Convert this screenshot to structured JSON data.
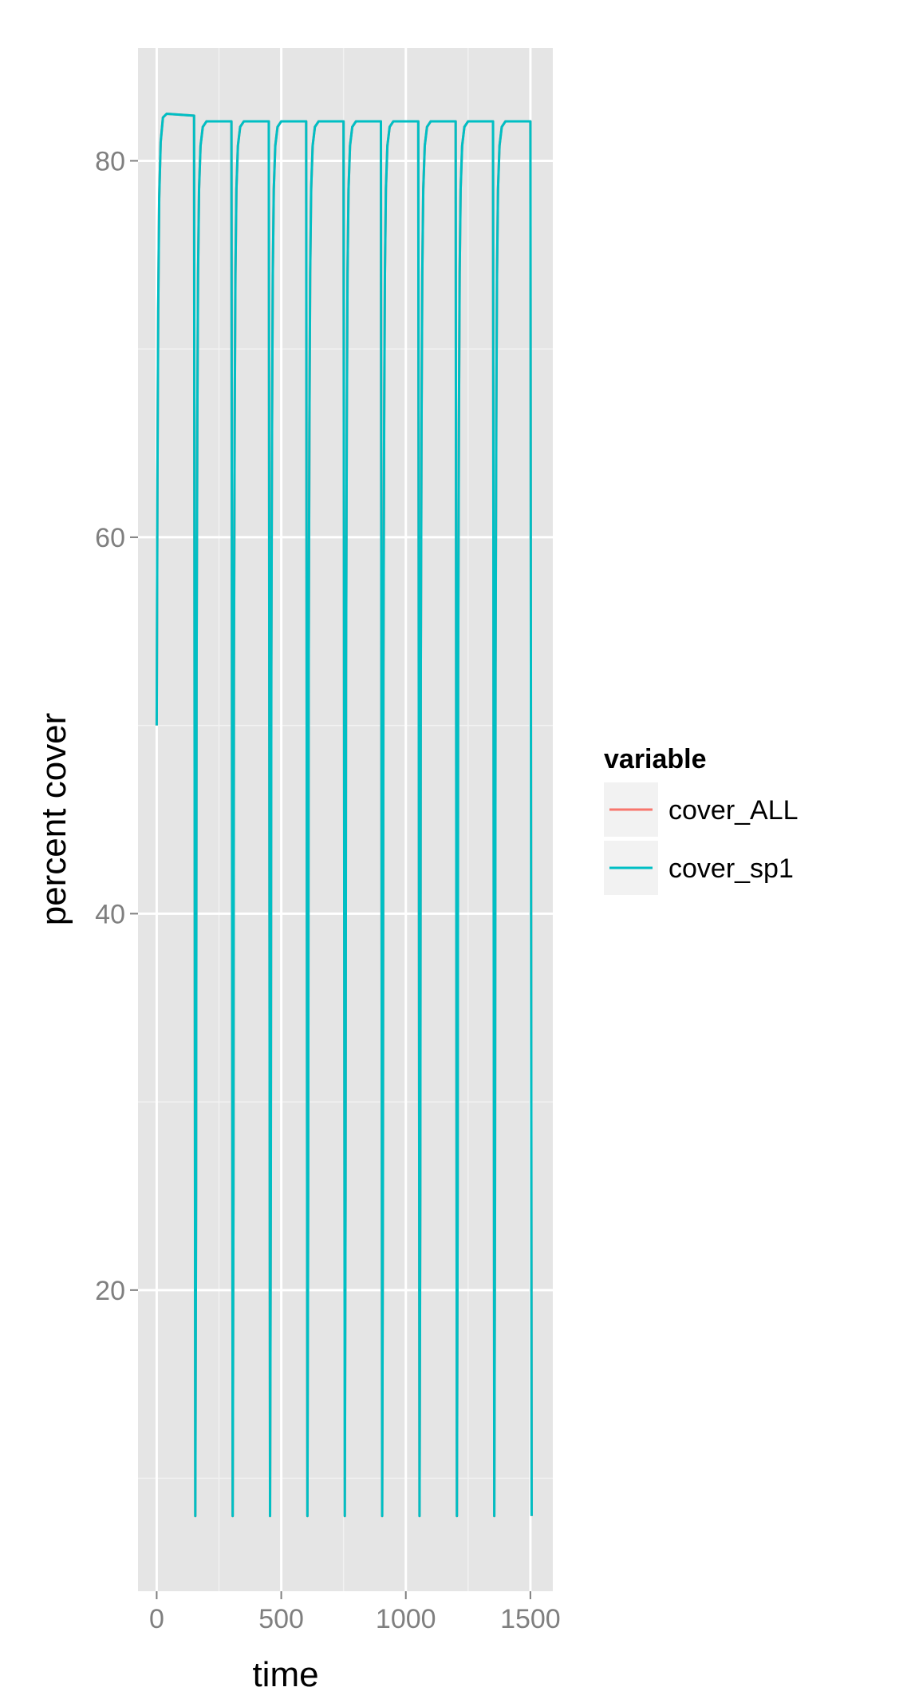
{
  "chart_data": {
    "type": "line",
    "title": "",
    "xlabel": "time",
    "ylabel": "percent cover",
    "xlim": [
      -75,
      1590
    ],
    "ylim": [
      4,
      86
    ],
    "x_ticks": [
      0,
      500,
      1000,
      1500
    ],
    "x_tick_labels": [
      "0",
      "500",
      "1000",
      "1500"
    ],
    "y_ticks": [
      20,
      40,
      60,
      80
    ],
    "y_tick_labels": [
      "20",
      "40",
      "60",
      "80"
    ],
    "grid": true,
    "legend": {
      "title": "variable",
      "position": "right",
      "entries": [
        {
          "name": "cover_ALL",
          "color": "#F8766D"
        },
        {
          "name": "cover_sp1",
          "color": "#00BFC4"
        }
      ]
    },
    "series": [
      {
        "name": "cover_ALL",
        "color": "#F8766D",
        "x": [
          0,
          3,
          6,
          10,
          16,
          25,
          40,
          150,
          155,
          158,
          160,
          163,
          166,
          170,
          176,
          185,
          200,
          300,
          305,
          308,
          310,
          313,
          316,
          320,
          326,
          335,
          350,
          450,
          455,
          458,
          460,
          463,
          466,
          470,
          476,
          485,
          500,
          600,
          605,
          608,
          610,
          613,
          616,
          620,
          626,
          635,
          650,
          750,
          755,
          758,
          760,
          763,
          766,
          770,
          776,
          785,
          800,
          900,
          905,
          908,
          910,
          913,
          916,
          920,
          926,
          935,
          950,
          1050,
          1055,
          1058,
          1060,
          1063,
          1066,
          1070,
          1076,
          1085,
          1100,
          1200,
          1205,
          1208,
          1210,
          1213,
          1216,
          1220,
          1226,
          1235,
          1250,
          1350,
          1355,
          1358,
          1360,
          1363,
          1366,
          1370,
          1376,
          1385,
          1400,
          1500,
          1505
        ],
        "y": [
          50,
          63,
          72,
          78,
          81,
          82.3,
          82.5,
          82.4,
          8,
          25,
          53,
          66,
          74,
          78.5,
          80.8,
          81.8,
          82.1,
          82.1,
          8,
          25,
          53,
          66,
          74,
          78.5,
          80.8,
          81.8,
          82.1,
          82.1,
          8,
          25,
          53,
          66,
          74,
          78.5,
          80.8,
          81.8,
          82.1,
          82.1,
          8,
          25,
          53,
          66,
          74,
          78.5,
          80.8,
          81.8,
          82.1,
          82.1,
          8,
          25,
          53,
          66,
          74,
          78.5,
          80.8,
          81.8,
          82.1,
          82.1,
          8,
          25,
          53,
          66,
          74,
          78.5,
          80.8,
          81.8,
          82.1,
          82.1,
          8,
          25,
          53,
          66,
          74,
          78.5,
          80.8,
          81.8,
          82.1,
          82.1,
          8,
          25,
          53,
          66,
          74,
          78.5,
          80.8,
          81.8,
          82.1,
          82.1,
          8,
          25,
          53,
          66,
          74,
          78.5,
          80.8,
          81.8,
          82.1,
          82.1,
          8
        ]
      },
      {
        "name": "cover_sp1",
        "color": "#00BFC4",
        "x": [
          0,
          3,
          6,
          10,
          16,
          25,
          40,
          150,
          155,
          158,
          160,
          163,
          166,
          170,
          176,
          185,
          200,
          300,
          305,
          308,
          310,
          313,
          316,
          320,
          326,
          335,
          350,
          450,
          455,
          458,
          460,
          463,
          466,
          470,
          476,
          485,
          500,
          600,
          605,
          608,
          610,
          613,
          616,
          620,
          626,
          635,
          650,
          750,
          755,
          758,
          760,
          763,
          766,
          770,
          776,
          785,
          800,
          900,
          905,
          908,
          910,
          913,
          916,
          920,
          926,
          935,
          950,
          1050,
          1055,
          1058,
          1060,
          1063,
          1066,
          1070,
          1076,
          1085,
          1100,
          1200,
          1205,
          1208,
          1210,
          1213,
          1216,
          1220,
          1226,
          1235,
          1250,
          1350,
          1355,
          1358,
          1360,
          1363,
          1366,
          1370,
          1376,
          1385,
          1400,
          1500,
          1505
        ],
        "y": [
          50,
          63,
          72,
          78,
          81,
          82.3,
          82.5,
          82.4,
          8,
          25,
          53,
          66,
          74,
          78.5,
          80.8,
          81.8,
          82.1,
          82.1,
          8,
          25,
          53,
          66,
          74,
          78.5,
          80.8,
          81.8,
          82.1,
          82.1,
          8,
          25,
          53,
          66,
          74,
          78.5,
          80.8,
          81.8,
          82.1,
          82.1,
          8,
          25,
          53,
          66,
          74,
          78.5,
          80.8,
          81.8,
          82.1,
          82.1,
          8,
          25,
          53,
          66,
          74,
          78.5,
          80.8,
          81.8,
          82.1,
          82.1,
          8,
          25,
          53,
          66,
          74,
          78.5,
          80.8,
          81.8,
          82.1,
          82.1,
          8,
          25,
          53,
          66,
          74,
          78.5,
          80.8,
          81.8,
          82.1,
          82.1,
          8,
          25,
          53,
          66,
          74,
          78.5,
          80.8,
          81.8,
          82.1,
          82.1,
          8,
          25,
          53,
          66,
          74,
          78.5,
          80.8,
          81.8,
          82.1,
          82.1,
          8
        ]
      }
    ]
  }
}
